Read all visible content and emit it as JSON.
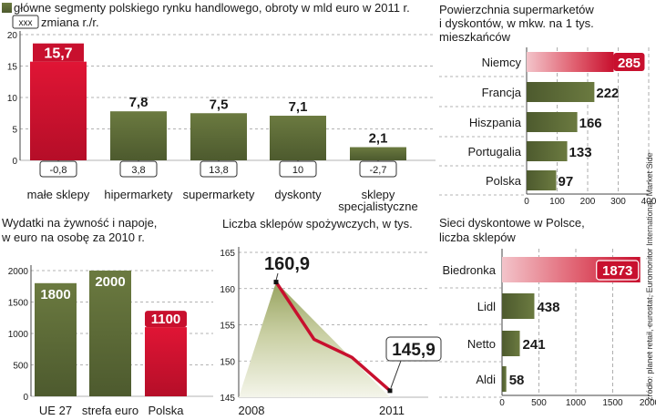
{
  "colors": {
    "red": "#c8102e",
    "red_light": "#e9a0a8",
    "olive": "#5d6b3a",
    "olive_light": "#c9cfb3",
    "green_area": "#b6be86",
    "axis": "#444444",
    "grid": "#9a9a9a"
  },
  "source_note": "źródło: planet retail, eurostat, Euromonitor International, Market Side",
  "chart_data": [
    {
      "id": "segments",
      "type": "bar",
      "title": "główne segmenty polskiego rynku handlowego, obroty w mld euro w 2011 r.",
      "legend_box": "xxx",
      "legend_text": "zmiana r./r.",
      "categories": [
        "małe sklepy",
        "hipermarkety",
        "supermarkety",
        "dyskonty",
        "sklepy specjalistyczne"
      ],
      "category_lines": [
        [
          "małe sklepy"
        ],
        [
          "hipermarkety"
        ],
        [
          "supermarkety"
        ],
        [
          "dyskonty"
        ],
        [
          "sklepy",
          "specjalistyczne"
        ]
      ],
      "values": [
        15.7,
        7.8,
        7.5,
        7.1,
        2.1
      ],
      "value_labels": [
        "15,7",
        "7,8",
        "7,5",
        "7,1",
        "2,1"
      ],
      "changes": [
        "-0,8",
        "3,8",
        "13,8",
        "10",
        "-2,7"
      ],
      "highlight_index": 0,
      "ylim": [
        0,
        20
      ],
      "yticks": [
        0,
        5,
        10,
        15,
        20
      ]
    },
    {
      "id": "supermarket_area",
      "type": "bar",
      "orientation": "horizontal",
      "title_lines": [
        "Powierzchnia supermarketów",
        "i dyskontów, w mkw. na 1 tys.",
        "mieszkańców"
      ],
      "categories": [
        "Niemcy",
        "Francja",
        "Hiszpania",
        "Portugalia",
        "Polska"
      ],
      "values": [
        285,
        222,
        166,
        133,
        97
      ],
      "highlight_index": 0,
      "xlim": [
        0,
        400
      ],
      "xticks": [
        0,
        100,
        200,
        300,
        400
      ]
    },
    {
      "id": "food_spending",
      "type": "bar",
      "title_lines": [
        "Wydatki na żywność i napoje,",
        "w euro na osobę za 2010 r."
      ],
      "categories": [
        "UE 27",
        "strefa euro",
        "Polska"
      ],
      "values": [
        1800,
        2000,
        1100
      ],
      "highlight_index": 2,
      "ylim": [
        0,
        2000
      ],
      "yticks": [
        0,
        500,
        1000,
        1500,
        2000
      ]
    },
    {
      "id": "grocery_stores",
      "type": "line",
      "title": "Liczba sklepów spożywczych, w tys.",
      "x": [
        2008,
        2009,
        2010,
        2011
      ],
      "y": [
        160.9,
        153.0,
        150.5,
        145.9
      ],
      "labels": {
        "first": "160,9",
        "last": "145,9"
      },
      "xtick_labels": [
        "2008",
        "2011"
      ],
      "ylim": [
        145,
        165
      ],
      "yticks": [
        145,
        150,
        155,
        160,
        165
      ]
    },
    {
      "id": "discount_chains",
      "type": "bar",
      "orientation": "horizontal",
      "title_lines": [
        "Sieci dyskontowe w Polsce,",
        "liczba sklepów"
      ],
      "categories": [
        "Biedronka",
        "Lidl",
        "Netto",
        "Aldi"
      ],
      "values": [
        1873,
        438,
        241,
        58
      ],
      "highlight_index": 0,
      "xlim": [
        0,
        2000
      ],
      "xticks": [
        0,
        500,
        1000,
        1500,
        2000
      ]
    }
  ]
}
